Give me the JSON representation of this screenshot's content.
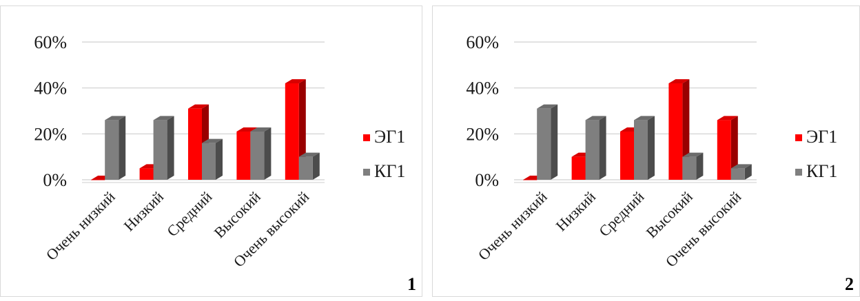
{
  "colors": {
    "eg": "#ff0000",
    "kg": "#7f7f7f",
    "grid": "#d9d9d9"
  },
  "chart_data": [
    {
      "type": "bar",
      "panel_label": "1",
      "categories": [
        "Очень низкий",
        "Низкий",
        "Средний",
        "Высокий",
        "Очень высокий"
      ],
      "ylim": [
        0,
        60
      ],
      "yticks": [
        "0%",
        "20%",
        "40%",
        "60%"
      ],
      "series": [
        {
          "name": "ЭГ1",
          "values": [
            0,
            5,
            31,
            21,
            42
          ]
        },
        {
          "name": "КГ1",
          "values": [
            26,
            26,
            16,
            21,
            10
          ]
        }
      ],
      "legend": "right"
    },
    {
      "type": "bar",
      "panel_label": "2",
      "categories": [
        "Очень низкий",
        "Низкий",
        "Средний",
        "Высокий",
        "Очень высокий"
      ],
      "ylim": [
        0,
        60
      ],
      "yticks": [
        "0%",
        "20%",
        "40%",
        "60%"
      ],
      "series": [
        {
          "name": "ЭГ1",
          "values": [
            0,
            10,
            21,
            42,
            26
          ]
        },
        {
          "name": "КГ1",
          "values": [
            31,
            26,
            26,
            10,
            5
          ]
        }
      ],
      "legend": "right"
    }
  ]
}
